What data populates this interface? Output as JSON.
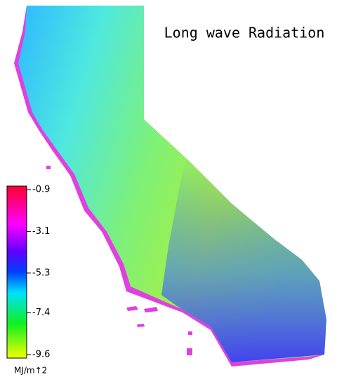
{
  "title": "Long wave Radiation",
  "colorbar": {
    "lim": [
      -9.6,
      -0.9
    ],
    "ticks": [
      -0.9,
      -3.1,
      -5.3,
      -7.4,
      -9.6
    ],
    "unit": "MJ/m↑2"
  }
}
